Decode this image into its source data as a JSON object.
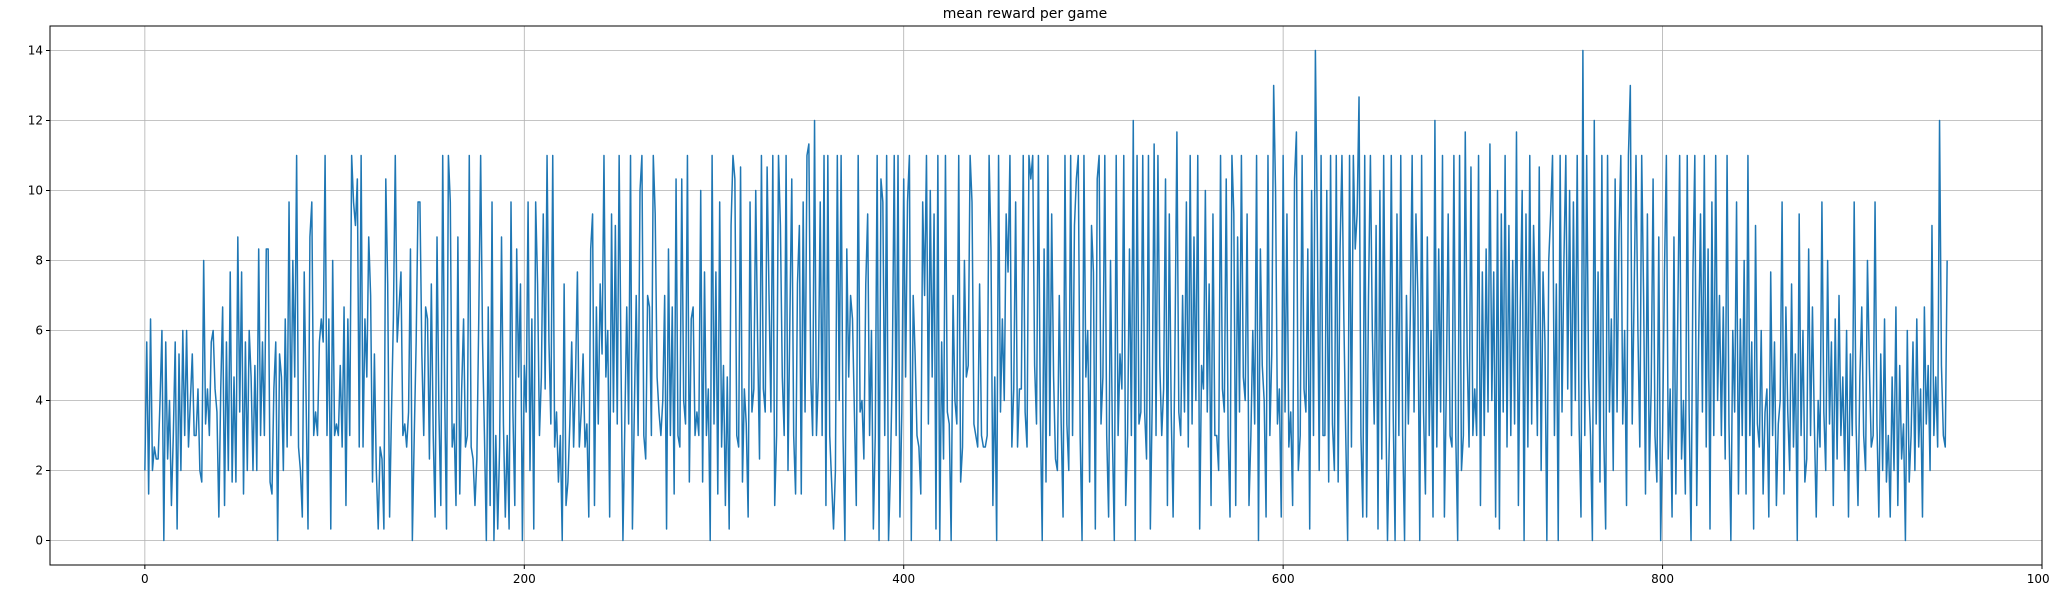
{
  "chart_data": {
    "type": "line",
    "title": "mean reward per game",
    "xlabel": "",
    "ylabel": "",
    "xlim": [
      -50,
      1000
    ],
    "ylim": [
      -0.7,
      14.7
    ],
    "xticks": [
      0,
      200,
      400,
      600,
      800,
      1000
    ],
    "yticks": [
      0,
      2,
      4,
      6,
      8,
      10,
      12,
      14
    ],
    "grid": true,
    "legend": "none",
    "series": [
      {
        "color": "#1f77b4",
        "x_start": 0,
        "x_step": 1,
        "values": [
          2.0,
          5.67,
          1.33,
          6.33,
          2.0,
          2.67,
          2.33,
          2.33,
          4.0,
          6.0,
          0.0,
          5.67,
          2.33,
          4.0,
          1.0,
          3.0,
          5.67,
          0.33,
          5.33,
          2.0,
          6.0,
          3.0,
          6.0,
          2.67,
          4.0,
          5.33,
          3.0,
          3.0,
          4.33,
          2.0,
          1.67,
          8.0,
          3.33,
          4.33,
          3.0,
          5.67,
          6.0,
          4.33,
          3.67,
          0.67,
          4.33,
          6.67,
          1.0,
          5.67,
          2.0,
          7.67,
          1.67,
          4.67,
          1.67,
          8.67,
          3.67,
          7.67,
          1.33,
          5.67,
          2.0,
          6.0,
          4.67,
          2.0,
          5.0,
          2.0,
          8.33,
          3.0,
          5.67,
          3.0,
          8.33,
          8.33,
          1.67,
          1.33,
          4.33,
          5.67,
          0.0,
          5.33,
          4.67,
          2.0,
          6.33,
          2.67,
          9.67,
          3.0,
          8.0,
          4.67,
          11.0,
          2.67,
          2.0,
          0.67,
          7.67,
          4.0,
          0.33,
          8.67,
          9.67,
          3.0,
          3.67,
          3.0,
          5.67,
          6.33,
          5.67,
          11.0,
          3.0,
          6.33,
          0.33,
          8.0,
          3.0,
          3.33,
          3.0,
          5.0,
          2.67,
          6.67,
          1.0,
          6.33,
          3.0,
          11.0,
          9.67,
          9.0,
          10.33,
          2.67,
          11.0,
          2.67,
          6.33,
          4.67,
          8.67,
          7.0,
          1.67,
          5.33,
          2.0,
          0.33,
          2.67,
          2.33,
          0.33,
          10.33,
          7.33,
          0.67,
          3.67,
          6.33,
          11.0,
          5.67,
          6.67,
          7.67,
          3.0,
          3.33,
          2.67,
          3.67,
          8.33,
          0.0,
          3.0,
          5.67,
          9.67,
          9.67,
          5.33,
          3.0,
          6.67,
          6.33,
          2.33,
          7.33,
          3.0,
          0.67,
          8.67,
          3.67,
          1.0,
          11.0,
          4.33,
          0.33,
          11.0,
          9.67,
          2.67,
          3.33,
          1.0,
          8.67,
          1.33,
          4.33,
          6.33,
          2.67,
          3.0,
          11.0,
          2.67,
          2.33,
          1.0,
          2.33,
          6.33,
          11.0,
          5.67,
          3.0,
          0.0,
          6.67,
          1.0,
          9.67,
          0.0,
          3.0,
          0.33,
          2.67,
          8.67,
          3.33,
          0.67,
          3.0,
          0.33,
          9.67,
          3.67,
          1.0,
          8.33,
          4.67,
          7.33,
          0.0,
          5.0,
          3.67,
          9.67,
          2.0,
          6.33,
          0.33,
          9.67,
          7.33,
          3.0,
          4.67,
          9.33,
          4.33,
          11.0,
          5.67,
          3.33,
          11.0,
          2.67,
          3.67,
          1.67,
          3.0,
          0.0,
          7.33,
          1.0,
          1.67,
          3.33,
          5.67,
          2.67,
          4.67,
          7.67,
          2.67,
          3.67,
          5.33,
          2.67,
          3.33,
          0.67,
          8.33,
          9.33,
          1.0,
          6.67,
          3.33,
          7.33,
          5.33,
          11.0,
          4.67,
          6.0,
          0.67,
          9.33,
          3.67,
          9.0,
          3.33,
          11.0,
          5.0,
          0.0,
          3.33,
          6.67,
          3.33,
          11.0,
          0.33,
          3.67,
          7.0,
          3.0,
          10.0,
          11.0,
          3.0,
          2.33,
          7.0,
          6.67,
          3.0,
          11.0,
          9.33,
          4.67,
          3.67,
          3.0,
          4.0,
          7.0,
          0.33,
          8.33,
          3.0,
          6.67,
          1.33,
          10.33,
          3.0,
          2.67,
          10.33,
          4.0,
          3.33,
          11.0,
          1.67,
          6.33,
          6.67,
          3.0,
          3.67,
          3.0,
          10.0,
          1.67,
          7.67,
          3.0,
          4.33,
          0.0,
          11.0,
          3.33,
          7.67,
          1.33,
          9.67,
          2.67,
          5.0,
          1.0,
          4.67,
          0.33,
          9.0,
          11.0,
          10.33,
          3.0,
          2.67,
          10.67,
          1.67,
          4.33,
          3.33,
          0.67,
          9.67,
          3.67,
          4.33,
          10.0,
          5.67,
          2.33,
          11.0,
          4.33,
          3.67,
          10.67,
          7.0,
          3.67,
          11.0,
          1.0,
          3.0,
          11.0,
          9.0,
          4.67,
          3.0,
          11.0,
          2.0,
          6.33,
          10.33,
          3.0,
          1.33,
          7.33,
          9.0,
          1.33,
          9.67,
          3.67,
          11.0,
          11.33,
          4.67,
          3.0,
          12.0,
          3.0,
          4.67,
          9.67,
          3.0,
          11.0,
          1.0,
          11.0,
          3.0,
          1.67,
          0.33,
          2.0,
          11.0,
          4.0,
          11.0,
          3.0,
          0.0,
          8.33,
          4.67,
          7.0,
          6.33,
          3.67,
          1.0,
          11.0,
          3.67,
          4.0,
          2.33,
          7.33,
          9.33,
          3.0,
          6.0,
          0.33,
          3.0,
          11.0,
          0.0,
          10.33,
          9.67,
          3.0,
          11.0,
          0.0,
          2.0,
          5.0,
          11.0,
          3.0,
          11.0,
          0.67,
          3.67,
          10.33,
          4.67,
          9.67,
          11.0,
          0.0,
          7.0,
          5.33,
          3.0,
          2.67,
          1.33,
          9.67,
          7.0,
          11.0,
          3.33,
          10.0,
          4.67,
          9.33,
          0.33,
          11.0,
          0.0,
          5.67,
          2.33,
          11.0,
          3.67,
          3.33,
          0.0,
          7.0,
          4.0,
          3.33,
          11.0,
          1.67,
          2.67,
          8.0,
          4.67,
          5.0,
          11.0,
          9.67,
          3.33,
          3.0,
          2.67,
          7.33,
          3.0,
          2.67,
          2.67,
          3.0,
          11.0,
          8.33,
          1.0,
          4.67,
          0.0,
          11.0,
          3.67,
          6.33,
          4.0,
          9.33,
          7.67,
          11.0,
          2.67,
          4.33,
          9.67,
          2.67,
          4.33,
          4.33,
          11.0,
          3.67,
          2.67,
          11.0,
          10.33,
          11.0,
          5.0,
          3.33,
          11.0,
          3.67,
          0.0,
          8.33,
          1.67,
          11.0,
          3.0,
          9.33,
          4.67,
          2.33,
          2.0,
          7.0,
          3.33,
          0.67,
          11.0,
          3.33,
          2.0,
          11.0,
          3.0,
          9.0,
          10.33,
          11.0,
          3.0,
          0.0,
          11.0,
          4.67,
          6.0,
          1.67,
          9.0,
          7.67,
          0.33,
          10.33,
          11.0,
          3.33,
          4.67,
          11.0,
          3.0,
          0.67,
          8.0,
          3.0,
          0.0,
          11.0,
          3.0,
          5.33,
          4.33,
          11.0,
          1.0,
          3.0,
          8.33,
          3.0,
          12.0,
          0.0,
          11.0,
          3.33,
          3.67,
          11.0,
          3.67,
          2.33,
          11.0,
          0.33,
          4.0,
          11.33,
          3.0,
          11.0,
          5.0,
          3.0,
          4.33,
          10.33,
          1.0,
          9.33,
          3.67,
          0.67,
          5.67,
          11.67,
          3.67,
          3.0,
          7.0,
          3.67,
          9.67,
          2.67,
          11.0,
          3.33,
          8.67,
          4.0,
          11.0,
          0.33,
          5.0,
          4.33,
          10.0,
          3.67,
          7.33,
          1.0,
          9.33,
          3.0,
          3.0,
          2.0,
          11.0,
          4.33,
          3.67,
          10.33,
          3.0,
          0.67,
          11.0,
          9.33,
          1.0,
          8.67,
          3.67,
          11.0,
          4.67,
          4.0,
          9.33,
          1.0,
          3.0,
          6.0,
          3.33,
          11.0,
          0.0,
          8.33,
          5.0,
          4.0,
          0.67,
          11.0,
          3.0,
          5.33,
          13.0,
          10.0,
          3.33,
          4.33,
          0.67,
          11.0,
          3.67,
          9.33,
          2.67,
          3.67,
          1.0,
          10.33,
          11.67,
          2.0,
          3.0,
          11.0,
          4.33,
          3.67,
          8.33,
          0.33,
          10.0,
          3.0,
          14.0,
          9.0,
          2.0,
          11.0,
          3.0,
          3.0,
          10.0,
          1.67,
          11.0,
          3.33,
          2.0,
          11.0,
          1.67,
          8.33,
          11.0,
          6.33,
          3.0,
          0.0,
          11.0,
          2.67,
          11.0,
          8.33,
          9.33,
          12.67,
          3.0,
          0.67,
          11.0,
          0.67,
          7.0,
          11.0,
          6.0,
          3.33,
          9.0,
          0.33,
          10.0,
          2.33,
          11.0,
          4.33,
          0.0,
          3.0,
          11.0,
          3.67,
          0.0,
          9.33,
          3.0,
          11.0,
          3.0,
          0.0,
          7.0,
          3.33,
          6.33,
          11.0,
          3.67,
          9.33,
          7.0,
          0.0,
          11.0,
          3.67,
          1.33,
          8.67,
          3.0,
          6.0,
          0.67,
          12.0,
          2.67,
          8.33,
          3.67,
          11.0,
          0.67,
          4.33,
          9.33,
          3.0,
          2.67,
          11.0,
          3.0,
          0.0,
          11.0,
          2.0,
          3.0,
          11.67,
          5.33,
          2.67,
          10.67,
          3.0,
          4.33,
          3.0,
          11.0,
          1.0,
          7.67,
          3.0,
          8.33,
          3.67,
          11.33,
          4.0,
          7.67,
          0.67,
          10.0,
          0.33,
          9.33,
          3.67,
          11.0,
          2.67,
          9.0,
          3.0,
          8.0,
          3.33,
          11.67,
          1.0,
          6.67,
          10.0,
          0.0,
          9.33,
          2.67,
          11.0,
          3.33,
          9.0,
          6.67,
          3.0,
          10.67,
          2.0,
          7.67,
          5.67,
          0.0,
          8.0,
          9.33,
          11.0,
          3.0,
          7.33,
          0.0,
          11.0,
          3.67,
          8.0,
          11.0,
          4.33,
          10.0,
          3.0,
          9.67,
          4.0,
          11.0,
          3.33,
          0.67,
          14.0,
          3.0,
          11.0,
          4.67,
          3.0,
          0.0,
          12.0,
          3.33,
          7.67,
          1.67,
          11.0,
          3.0,
          0.33,
          11.0,
          3.67,
          6.33,
          2.0,
          10.33,
          3.67,
          8.67,
          11.0,
          3.33,
          6.0,
          1.0,
          11.0,
          13.0,
          3.33,
          7.0,
          11.0,
          6.0,
          2.67,
          11.0,
          7.0,
          1.33,
          9.33,
          2.0,
          4.33,
          10.33,
          3.0,
          1.67,
          8.67,
          0.0,
          3.0,
          7.67,
          11.0,
          2.33,
          4.33,
          0.67,
          8.67,
          1.33,
          6.33,
          11.0,
          2.33,
          4.0,
          1.33,
          11.0,
          3.67,
          0.0,
          7.67,
          11.0,
          1.0,
          5.67,
          9.33,
          3.67,
          11.0,
          2.67,
          8.33,
          0.33,
          9.67,
          3.0,
          11.0,
          4.0,
          7.0,
          3.0,
          6.67,
          2.33,
          11.0,
          3.33,
          0.0,
          6.0,
          3.67,
          9.67,
          1.33,
          6.33,
          3.0,
          8.0,
          1.33,
          11.0,
          3.0,
          5.67,
          0.33,
          9.0,
          3.33,
          2.67,
          6.0,
          1.33,
          3.67,
          4.33,
          0.67,
          7.67,
          3.0,
          5.67,
          1.0,
          3.33,
          4.0,
          9.67,
          1.33,
          6.67,
          3.67,
          2.0,
          7.33,
          2.67,
          5.33,
          0.0,
          9.33,
          3.0,
          6.0,
          1.67,
          2.33,
          8.33,
          3.0,
          6.67,
          3.33,
          0.67,
          4.0,
          2.67,
          9.67,
          3.67,
          2.0,
          8.0,
          3.33,
          5.67,
          1.0,
          6.33,
          2.33,
          7.0,
          3.0,
          4.67,
          2.0,
          6.0,
          0.67,
          5.33,
          3.0,
          9.67,
          3.33,
          1.0,
          4.67,
          6.67,
          3.0,
          2.0,
          8.0,
          5.0,
          2.67,
          3.0,
          9.67,
          3.33,
          0.67,
          5.33,
          2.0,
          6.33,
          1.67,
          3.0,
          0.67,
          4.67,
          2.0,
          6.67,
          1.0,
          5.0,
          2.33,
          3.33,
          0.0,
          6.0,
          1.67,
          3.0,
          5.67,
          2.0,
          6.33,
          2.67,
          4.33,
          0.67,
          6.67,
          3.33,
          5.0,
          2.0,
          9.0,
          3.0,
          4.67,
          2.67,
          12.0,
          5.0,
          3.0,
          2.67,
          8.0
        ]
      }
    ]
  }
}
